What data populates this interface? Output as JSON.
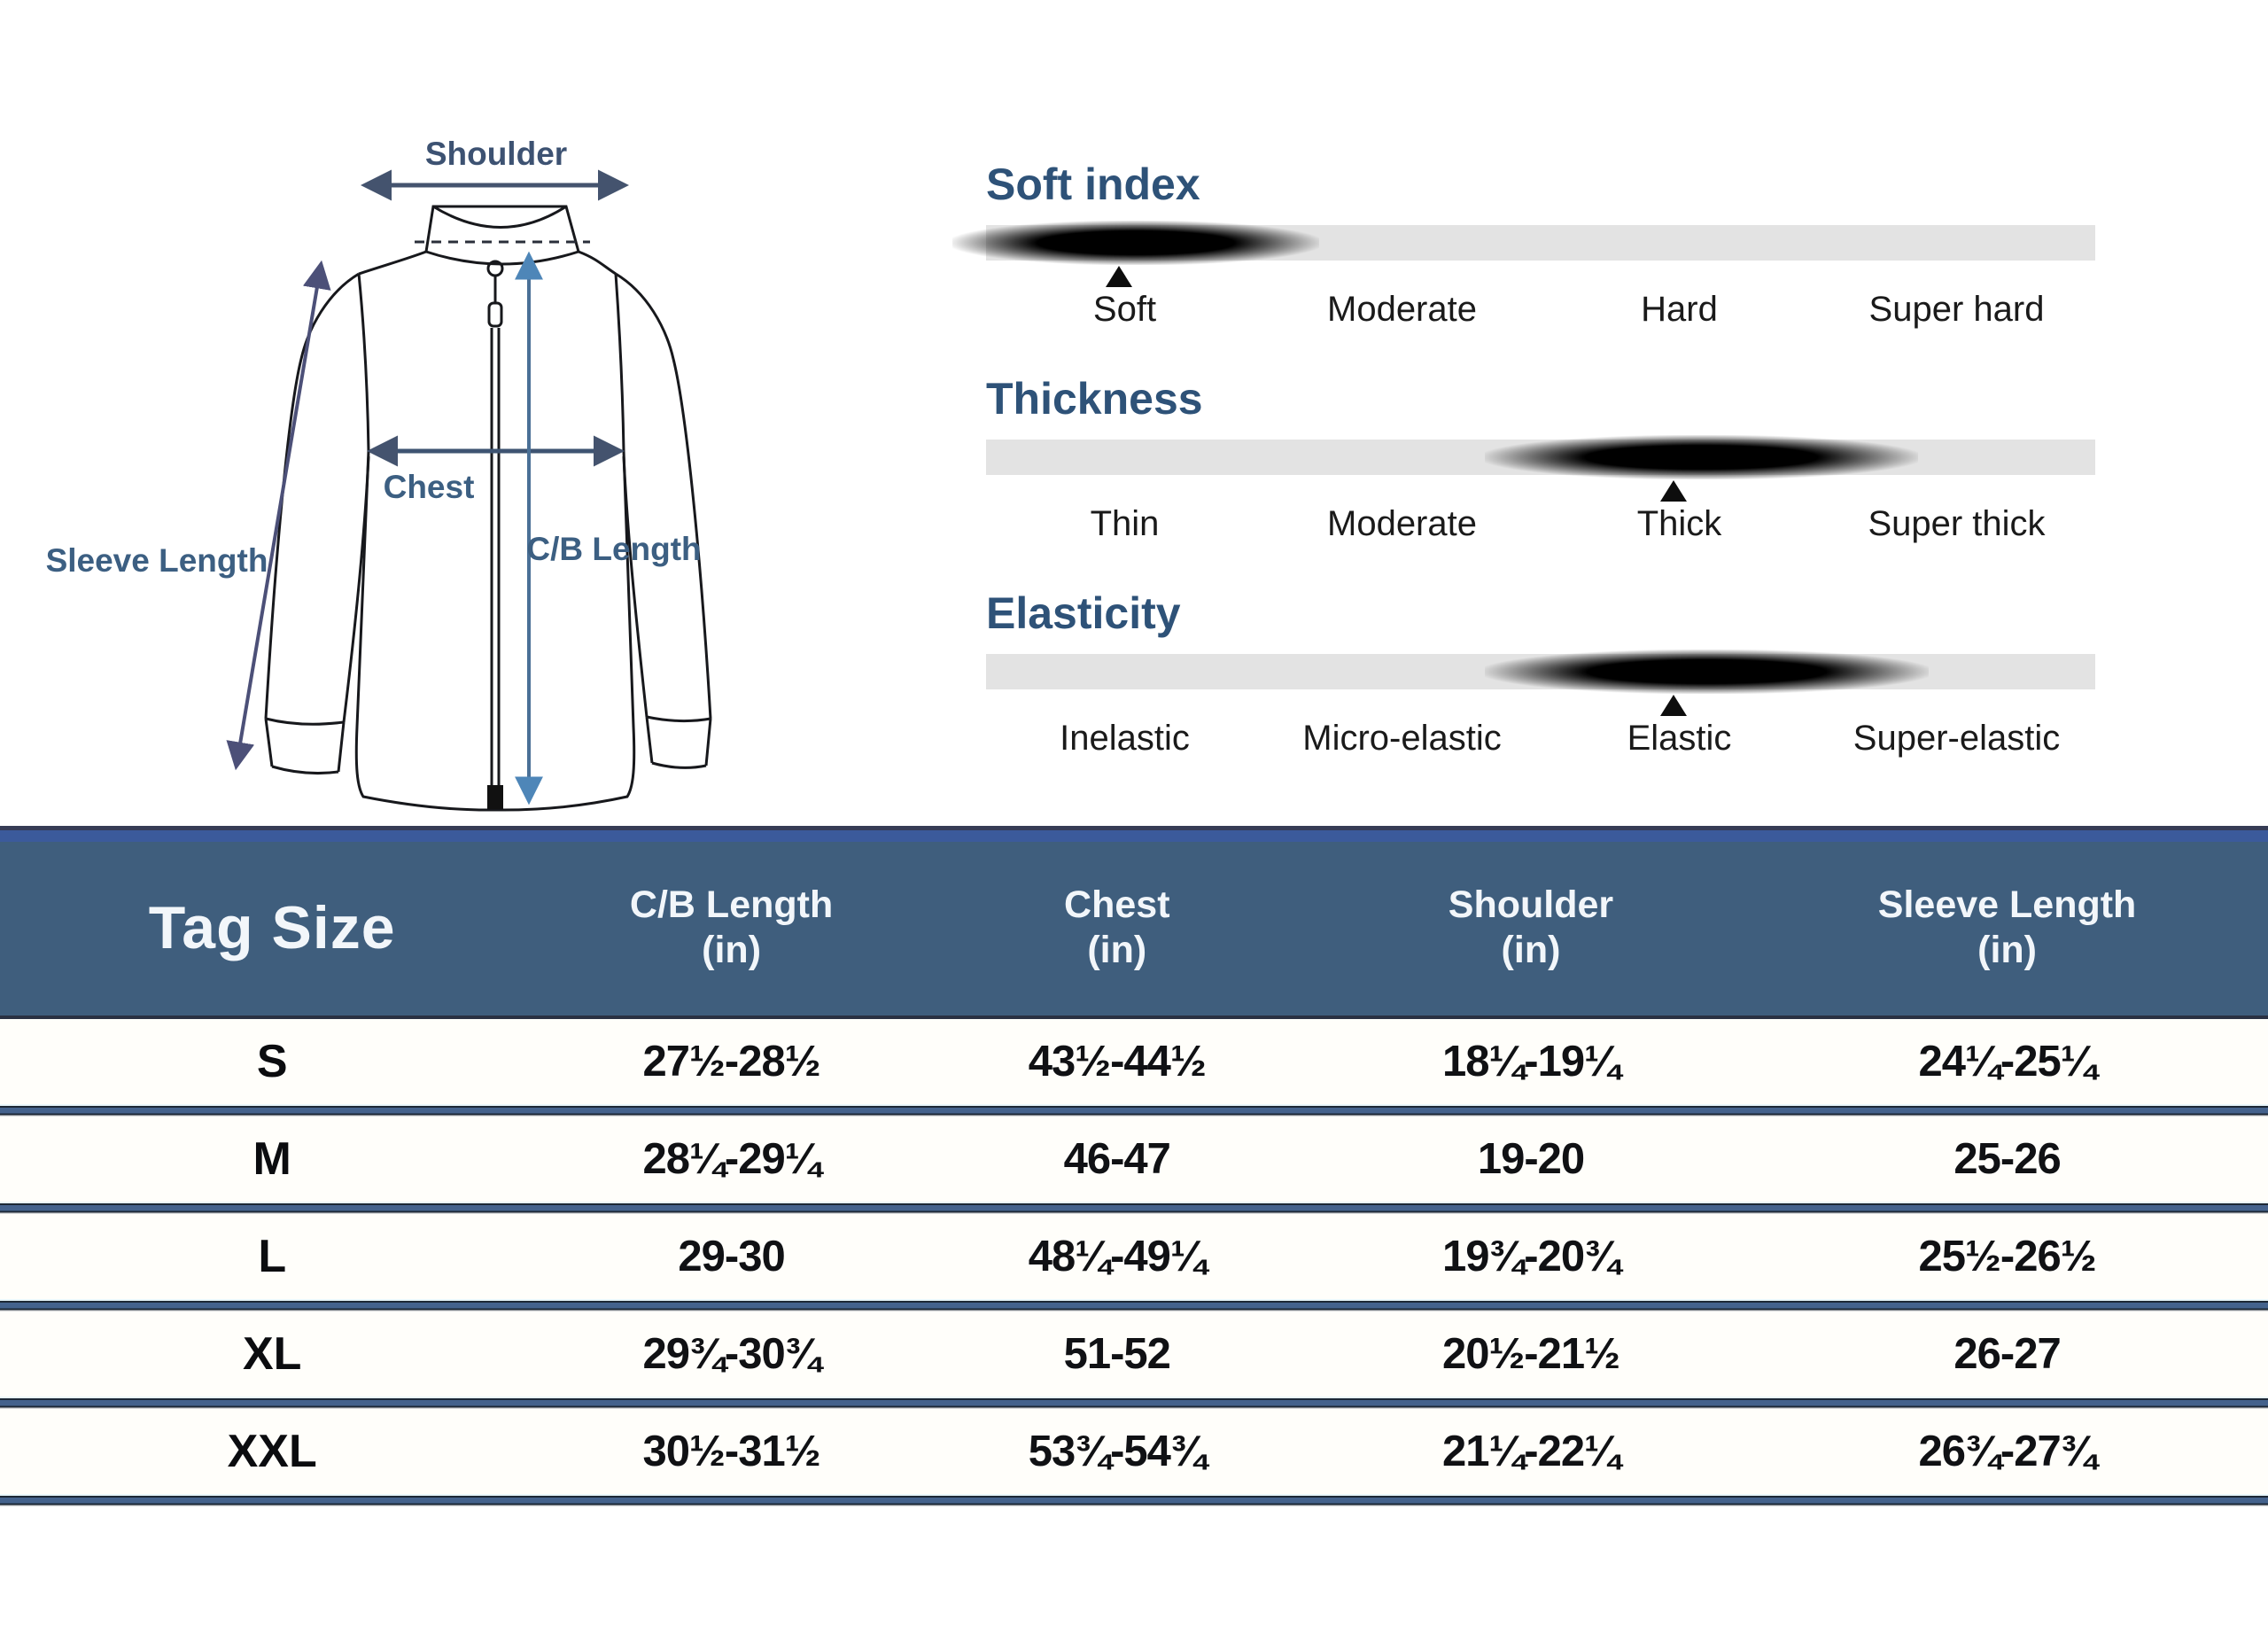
{
  "diagram": {
    "labels": {
      "shoulder": "Shoulder",
      "sleeve_length": "Sleeve Length",
      "chest": "Chest",
      "cb_length": "C/B Length"
    }
  },
  "indices": [
    {
      "title": "Soft index",
      "levels": [
        "Soft",
        "Moderate",
        "Hard",
        "Super hard"
      ],
      "marker_pct": 12,
      "blob_left_pct": -3,
      "blob_width_pct": 33
    },
    {
      "title": "Thickness",
      "levels": [
        "Thin",
        "Moderate",
        "Thick",
        "Super thick"
      ],
      "marker_pct": 62,
      "blob_left_pct": 45,
      "blob_width_pct": 39
    },
    {
      "title": "Elasticity",
      "levels": [
        "Inelastic",
        "Micro-elastic",
        "Elastic",
        "Super-elastic"
      ],
      "marker_pct": 62,
      "blob_left_pct": 45,
      "blob_width_pct": 40
    }
  ],
  "size_table": {
    "columns": [
      {
        "label": "Tag Size",
        "unit": ""
      },
      {
        "label": "C/B Length",
        "unit": "(in)"
      },
      {
        "label": "Chest",
        "unit": "(in)"
      },
      {
        "label": "Shoulder",
        "unit": "(in)"
      },
      {
        "label": "Sleeve Length",
        "unit": "(in)"
      }
    ],
    "rows": [
      {
        "size": "S",
        "cb": "27½-28½",
        "chest": "43½-44½",
        "shoulder": "18¼-19¼",
        "sleeve": "24¼-25¼"
      },
      {
        "size": "M",
        "cb": "28¼-29¼",
        "chest": "46-47",
        "shoulder": "19-20",
        "sleeve": "25-26"
      },
      {
        "size": "L",
        "cb": "29-30",
        "chest": "48¼-49¼",
        "shoulder": "19¾-20¾",
        "sleeve": "25½-26½"
      },
      {
        "size": "XL",
        "cb": "29¾-30¾",
        "chest": "51-52",
        "shoulder": "20½-21½",
        "sleeve": "26-27"
      },
      {
        "size": "XXL",
        "cb": "30½-31½",
        "chest": "53¾-54¾",
        "shoulder": "21¼-22¼",
        "sleeve": "26¾-27¾"
      }
    ]
  },
  "colors": {
    "heading_blue": "#2e5278",
    "label_blue": "#3c5f82",
    "header_bg": "#3f5e7d",
    "header_accent_strip": "#3b5a9b",
    "header_top_line": "#363c55",
    "separator_blue": "#44628c",
    "bar_gray": "#e3e3e3",
    "marker_black": "#0d0d0d"
  }
}
